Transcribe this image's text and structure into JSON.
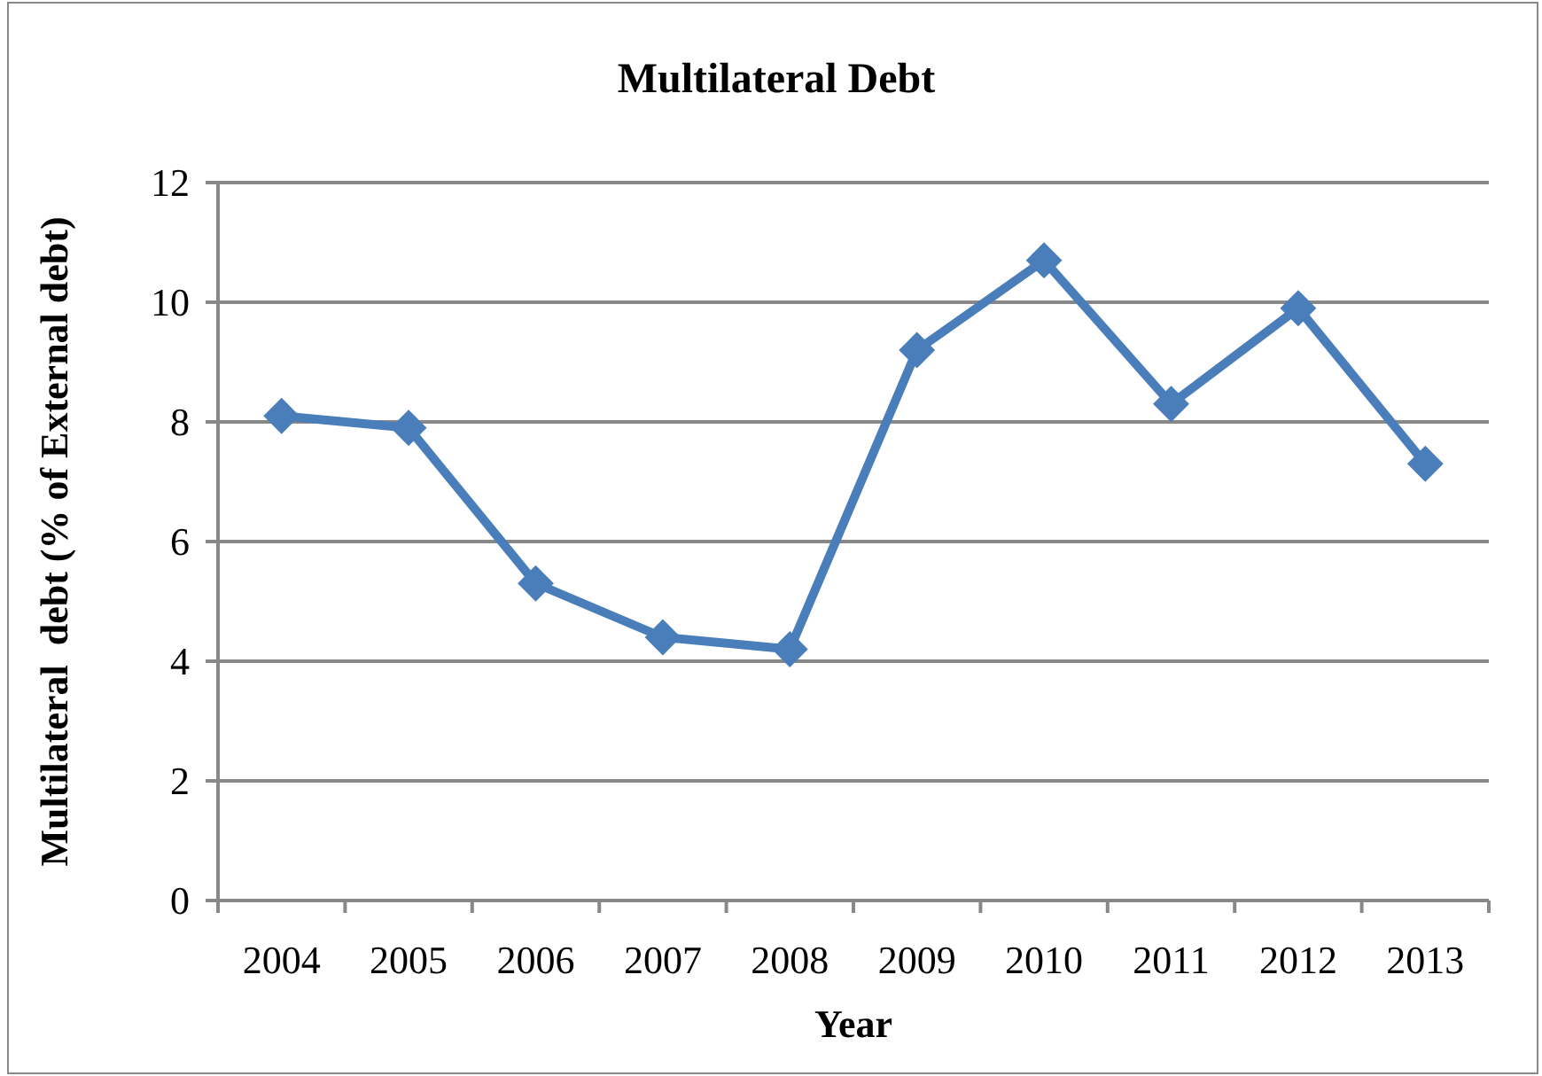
{
  "chart_data": {
    "type": "line",
    "title": "Multilateral Debt",
    "xlabel": "Year",
    "ylabel": "Multilateral  debt (% of External debt)",
    "categories": [
      "2004",
      "2005",
      "2006",
      "2007",
      "2008",
      "2009",
      "2010",
      "2011",
      "2012",
      "2013"
    ],
    "series": [
      {
        "color": "#4a7ebb",
        "values": [
          8.1,
          7.9,
          5.3,
          4.4,
          4.2,
          9.2,
          10.7,
          8.3,
          9.9,
          7.3
        ]
      }
    ],
    "ylim": [
      0,
      12
    ],
    "yticks": [
      0,
      2,
      4,
      6,
      8,
      10,
      12
    ],
    "grid": "y",
    "marker": "diamond",
    "line_style": "solid"
  }
}
